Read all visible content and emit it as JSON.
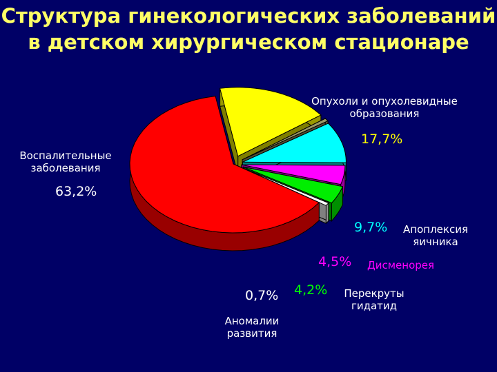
{
  "title_lines": [
    "Структура гинекологических заболеваний",
    "в детском хирургическом стационаре"
  ],
  "chart_data": {
    "type": "pie",
    "title": "Структура гинекологических заболеваний в детском хирургическом стационаре",
    "slices": [
      {
        "name": [
          "Опухоли и опухолевидные",
          "образования"
        ],
        "value": 17.7,
        "label": "17,7%",
        "color": "#ffff00",
        "label_color": "#ffff00"
      },
      {
        "name": [
          "Аномалии",
          "развития"
        ],
        "value": 0.7,
        "label": "0,7%",
        "color": "#999966",
        "label_color": "#ffffff"
      },
      {
        "name": [
          "Апоплексия",
          "яичника"
        ],
        "value": 9.7,
        "label": "9,7%",
        "color": "#00ffff",
        "label_color": "#00ffff"
      },
      {
        "name": [
          "Дисменорея"
        ],
        "value": 4.5,
        "label": "4,5%",
        "color": "#ff00ff",
        "label_color": "#ff00ff"
      },
      {
        "name": [
          "Перекруты",
          "гидатид"
        ],
        "value": 4.2,
        "label": "4,2%",
        "color": "#00ee00",
        "label_color": "#00ff00"
      },
      {
        "name": [],
        "value": 0.7,
        "label": "",
        "color": "#ffffff",
        "label_color": "#ffffff"
      },
      {
        "name": [
          "Воспалительные",
          "заболевания"
        ],
        "value": 63.2,
        "label": "63,2%",
        "color": "#ff0000",
        "label_color": "#ffffff"
      }
    ]
  }
}
